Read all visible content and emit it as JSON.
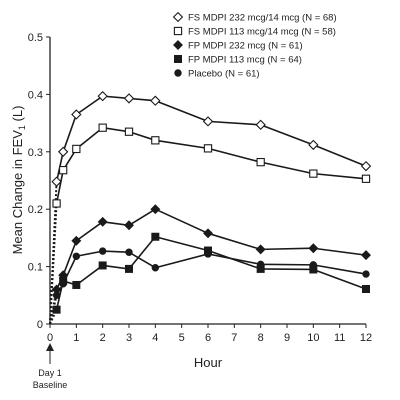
{
  "chart_data": {
    "type": "line",
    "xlabel": "Hour",
    "ylabel": "Mean Change in FEV",
    "ylabel_subscript": "1",
    "ylabel_suffix": " (L)",
    "xlim": [
      0,
      12
    ],
    "ylim": [
      0,
      0.5
    ],
    "x_ticks": [
      0,
      1,
      2,
      3,
      4,
      5,
      6,
      7,
      8,
      9,
      10,
      11,
      12
    ],
    "y_ticks": [
      0,
      0.1,
      0.2,
      0.3,
      0.4,
      0.5
    ],
    "y_tick_labels": [
      "0",
      "0.1",
      "0.2",
      "0.3",
      "0.4",
      "0.5"
    ],
    "grid": false,
    "legend_position": "top-right",
    "baseline_note": [
      "Day 1",
      "Baseline"
    ],
    "series": [
      {
        "name": "FS MDPI 232 mcg/14 mcg (N = 68)",
        "marker": "diamond-open",
        "x": [
          0,
          0.25,
          0.5,
          1,
          2,
          3,
          4,
          6,
          8,
          10,
          12
        ],
        "values": [
          0,
          0.248,
          0.3,
          0.365,
          0.397,
          0.393,
          0.389,
          0.353,
          0.347,
          0.312,
          0.275
        ]
      },
      {
        "name": "FS MDPI 113 mcg/14 mcg (N = 58)",
        "marker": "square-open",
        "x": [
          0,
          0.25,
          0.5,
          1,
          2,
          3,
          4,
          6,
          8,
          10,
          12
        ],
        "values": [
          0,
          0.21,
          0.268,
          0.305,
          0.342,
          0.335,
          0.32,
          0.306,
          0.282,
          0.262,
          0.253
        ]
      },
      {
        "name": "FP MDPI 232 mcg (N = 61)",
        "marker": "diamond-filled",
        "x": [
          0,
          0.25,
          0.5,
          1,
          2,
          3,
          4,
          6,
          8,
          10,
          12
        ],
        "values": [
          0,
          0.06,
          0.085,
          0.145,
          0.178,
          0.172,
          0.2,
          0.158,
          0.13,
          0.132,
          0.12
        ]
      },
      {
        "name": "FP MDPI 113 mcg (N = 64)",
        "marker": "square-filled",
        "x": [
          0,
          0.25,
          0.5,
          1,
          2,
          3,
          4,
          6,
          8,
          10,
          12
        ],
        "values": [
          0,
          0.025,
          0.075,
          0.068,
          0.102,
          0.096,
          0.152,
          0.128,
          0.096,
          0.095,
          0.061
        ]
      },
      {
        "name": "Placebo (N = 61)",
        "marker": "circle-filled",
        "x": [
          0,
          0.25,
          0.5,
          1,
          2,
          3,
          4,
          6,
          8,
          10,
          12
        ],
        "values": [
          0,
          0.05,
          0.07,
          0.118,
          0.127,
          0.125,
          0.098,
          0.122,
          0.104,
          0.103,
          0.087
        ]
      }
    ]
  }
}
